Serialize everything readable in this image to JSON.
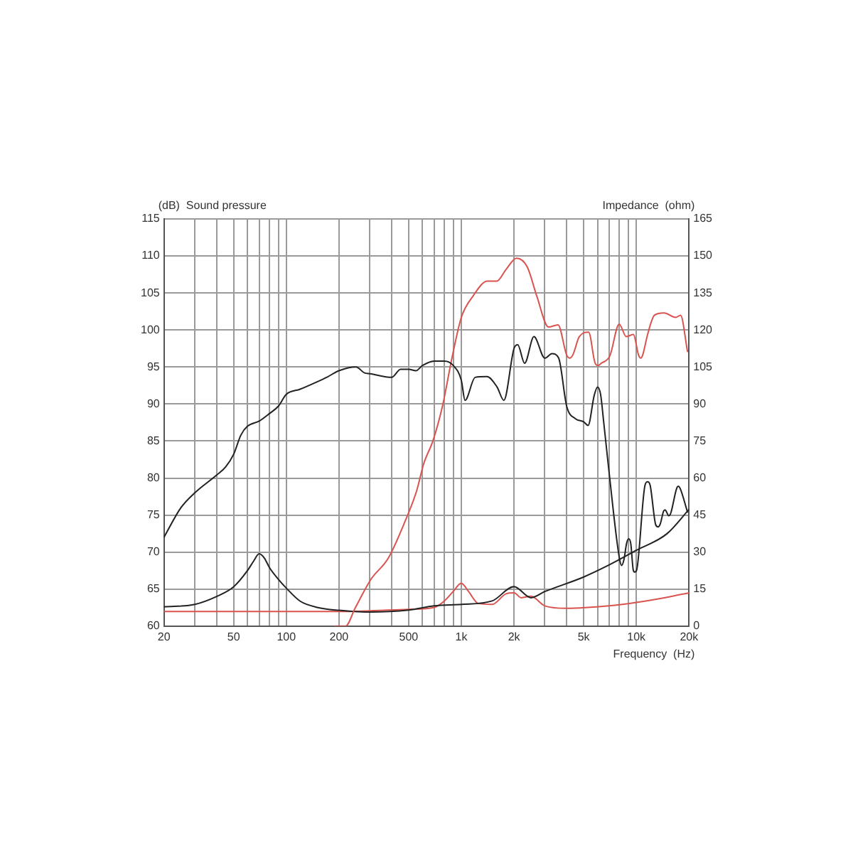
{
  "chart_data": {
    "type": "line",
    "ylabel": "(dB)  Sound pressure",
    "y2label": "Impedance  (ohm)",
    "xlabel": "Frequency  (Hz)",
    "log": "x",
    "grid": true,
    "legend": false,
    "marker": "none",
    "line_style": "solid",
    "xlim": [
      20,
      20000
    ],
    "xticks": [
      {
        "value": 20,
        "label": "20"
      },
      {
        "value": 30,
        "label": null
      },
      {
        "value": 40,
        "label": null
      },
      {
        "value": 50,
        "label": "50"
      },
      {
        "value": 60,
        "label": null
      },
      {
        "value": 70,
        "label": null
      },
      {
        "value": 80,
        "label": null
      },
      {
        "value": 90,
        "label": null
      },
      {
        "value": 100,
        "label": "100"
      },
      {
        "value": 200,
        "label": "200"
      },
      {
        "value": 300,
        "label": null
      },
      {
        "value": 400,
        "label": null
      },
      {
        "value": 500,
        "label": "500"
      },
      {
        "value": 600,
        "label": null
      },
      {
        "value": 700,
        "label": null
      },
      {
        "value": 800,
        "label": null
      },
      {
        "value": 900,
        "label": null
      },
      {
        "value": 1000,
        "label": "1k"
      },
      {
        "value": 2000,
        "label": "2k"
      },
      {
        "value": 3000,
        "label": null
      },
      {
        "value": 4000,
        "label": null
      },
      {
        "value": 5000,
        "label": "5k"
      },
      {
        "value": 6000,
        "label": null
      },
      {
        "value": 7000,
        "label": null
      },
      {
        "value": 8000,
        "label": null
      },
      {
        "value": 9000,
        "label": null
      },
      {
        "value": 10000,
        "label": "10k"
      },
      {
        "value": 20000,
        "label": "20k"
      }
    ],
    "ylim": [
      60,
      115
    ],
    "yticks": [
      60,
      65,
      70,
      75,
      80,
      85,
      90,
      95,
      100,
      105,
      110,
      115
    ],
    "y2lim": [
      0,
      165
    ],
    "y2ticks": [
      0,
      15,
      30,
      45,
      60,
      75,
      90,
      105,
      120,
      135,
      150,
      165
    ],
    "series": [
      {
        "color": "#222222",
        "x": [
          20,
          25,
          30,
          40,
          45,
          50,
          55,
          60,
          70,
          80,
          90,
          100,
          120,
          150,
          170,
          200,
          250,
          280,
          300,
          400,
          450,
          500,
          550,
          600,
          700,
          800,
          900,
          1000,
          1050,
          1200,
          1400,
          1600,
          1750,
          2000,
          2100,
          2300,
          2600,
          3000,
          3300,
          3600,
          4000,
          4500,
          5000,
          5300,
          5750,
          6000,
          6250,
          6500,
          7000,
          8000,
          8250,
          8500,
          8800,
          9050,
          9300,
          9600,
          9800,
          10050,
          11200,
          11600,
          12000,
          12900,
          13300,
          13700,
          14300,
          14600,
          14900,
          15300,
          15700,
          17000,
          17400,
          17800,
          19600
        ],
        "values": [
          72,
          76,
          78,
          80.4,
          81.5,
          83.2,
          85.8,
          87,
          87.7,
          88.7,
          89.7,
          91.3,
          92,
          93,
          93.6,
          94.5,
          95,
          94.2,
          94.1,
          93.6,
          94.7,
          94.7,
          94.5,
          95.2,
          95.8,
          95.8,
          95.2,
          93.2,
          90.5,
          93.6,
          93.7,
          92.3,
          90.5,
          97.5,
          98,
          95.5,
          99.1,
          96.2,
          96.8,
          96.2,
          89.7,
          88,
          87.6,
          87.1,
          91.2,
          92.3,
          91.3,
          87.7,
          80.6,
          69.2,
          68.2,
          69,
          71.2,
          71.8,
          71.1,
          67.6,
          67.3,
          67.6,
          79,
          79.5,
          79,
          73.7,
          73.4,
          73.8,
          75.5,
          75.7,
          75.4,
          74.9,
          75.2,
          78.6,
          78.9,
          78.6,
          75.4
        ]
      },
      {
        "color": "#d9534f",
        "x": [
          190,
          218,
          247,
          304,
          383,
          476,
          556,
          609,
          690,
          780,
          884,
          1000,
          1168,
          1407,
          1593,
          1804,
          2068,
          2383,
          2698,
          3150,
          3570,
          4000,
          4166,
          4350,
          4720,
          5340,
          5800,
          6050,
          6300,
          7060,
          7980,
          8760,
          9620,
          10300,
          10600,
          10900,
          11600,
          12700,
          14400,
          16800,
          17900,
          19600
        ],
        "values": [
          60,
          60,
          62.4,
          66.3,
          69.2,
          74.1,
          78.3,
          81.9,
          85.1,
          89.7,
          96.2,
          101.7,
          104.6,
          106.6,
          106.6,
          108.2,
          109.7,
          108.5,
          104.6,
          100.4,
          100.7,
          96.6,
          96.2,
          96.7,
          99.1,
          99.7,
          95.6,
          95.2,
          95.5,
          96.5,
          100.8,
          99.1,
          99.4,
          96.6,
          96.2,
          96.7,
          99.4,
          102,
          102.3,
          101.7,
          102,
          97.1
        ]
      },
      {
        "color": "#222222",
        "axis": "y2",
        "x": [
          20,
          30,
          40,
          50,
          60,
          65,
          70,
          75,
          80,
          90,
          100,
          120,
          150,
          200,
          300,
          500,
          700,
          1000,
          1500,
          2000,
          2500,
          3000,
          5000,
          7000,
          10000,
          15000,
          20000
        ],
        "values": [
          7.8,
          8.8,
          12,
          15.9,
          22.5,
          26.3,
          29.3,
          27.5,
          23.8,
          19,
          15.4,
          10.1,
          7.6,
          6.4,
          5.7,
          6.5,
          8.2,
          8.8,
          10.2,
          16,
          11.5,
          14,
          19.9,
          24.8,
          30.7,
          37.5,
          47.3
        ]
      },
      {
        "color": "#d9534f",
        "axis": "y2",
        "x": [
          20,
          200,
          500,
          700,
          800,
          900,
          1000,
          1100,
          1250,
          1500,
          1800,
          2000,
          2200,
          2500,
          3000,
          4000,
          7000,
          10000,
          15000,
          20000
        ],
        "values": [
          5.9,
          5.9,
          6.8,
          7.6,
          10.2,
          14.1,
          17.4,
          14,
          9.2,
          8.8,
          13.1,
          13.5,
          11.5,
          12.1,
          8.2,
          7.2,
          8.2,
          9.6,
          11.7,
          13.5
        ]
      }
    ]
  }
}
